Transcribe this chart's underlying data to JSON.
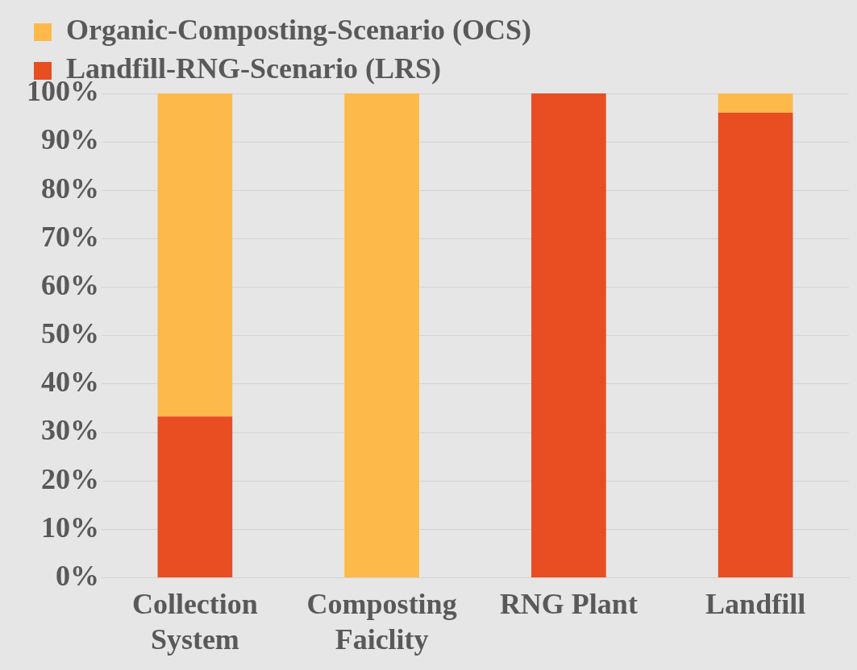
{
  "chart_data": {
    "type": "bar",
    "stacked": true,
    "categories": [
      "Collection System",
      "Composting Faiclity",
      "RNG Plant",
      "Landfill"
    ],
    "series": [
      {
        "name": "Landfill-RNG-Scenario (LRS)",
        "color": "#e84e21",
        "values": [
          33.3,
          0,
          100,
          96
        ]
      },
      {
        "name": "Organic-Composting-Scenario (OCS)",
        "color": "#fdb94a",
        "values": [
          66.7,
          100,
          0,
          4
        ]
      }
    ],
    "ylim": [
      0,
      100
    ],
    "yticks": [
      {
        "value": 0,
        "label": "0%"
      },
      {
        "value": 10,
        "label": "10%"
      },
      {
        "value": 20,
        "label": "20%"
      },
      {
        "value": 30,
        "label": "30%"
      },
      {
        "value": 40,
        "label": "40%"
      },
      {
        "value": 50,
        "label": "50%"
      },
      {
        "value": 60,
        "label": "60%"
      },
      {
        "value": 70,
        "label": "70%"
      },
      {
        "value": 80,
        "label": "80%"
      },
      {
        "value": 90,
        "label": "90%"
      },
      {
        "value": 100,
        "label": "100%"
      }
    ],
    "grid": "y",
    "legend": "top left"
  }
}
